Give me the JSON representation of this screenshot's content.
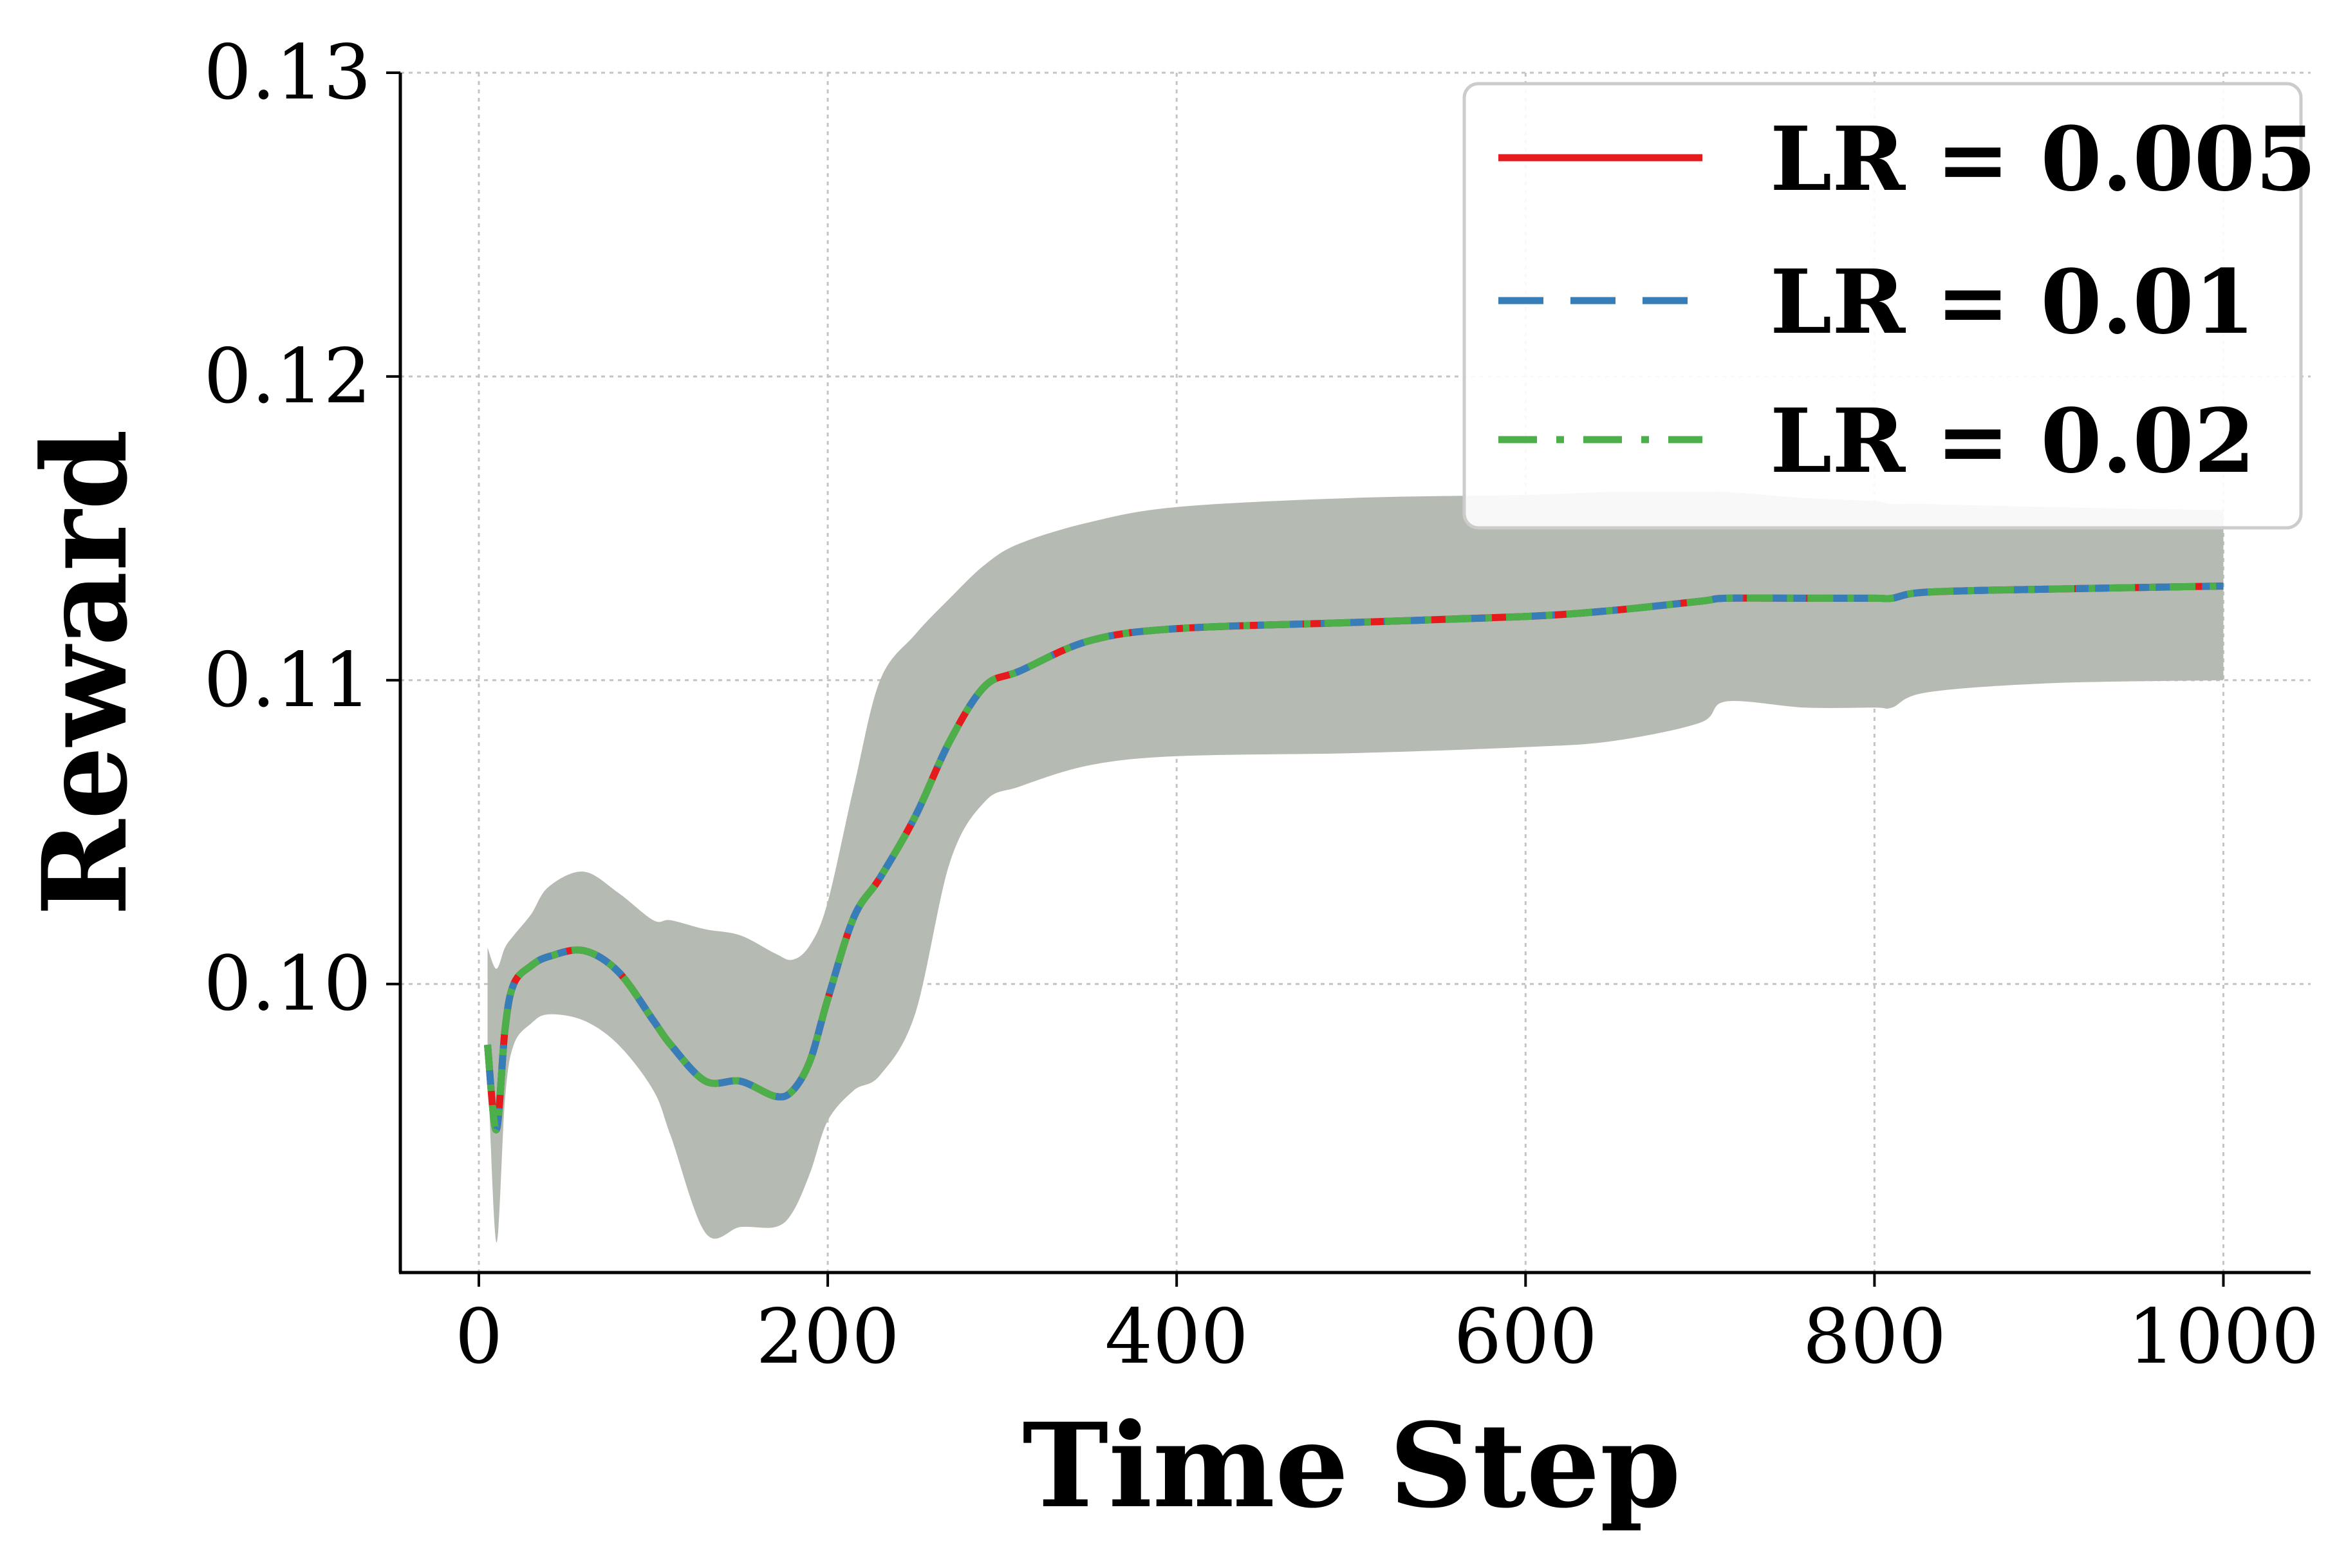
{
  "chart_data": {
    "type": "line",
    "xlabel": "Time Step",
    "ylabel": "Reward",
    "xlim": [
      -45,
      1050
    ],
    "ylim": [
      0.0905,
      0.13
    ],
    "xticks": [
      0,
      200,
      400,
      600,
      800,
      1000
    ],
    "xtick_labels": [
      "0",
      "200",
      "400",
      "600",
      "800",
      "1000"
    ],
    "yticks": [
      0.1,
      0.11,
      0.12,
      0.13
    ],
    "ytick_labels": [
      "0.10",
      "0.11",
      "0.12",
      "0.13"
    ],
    "grid": true,
    "legend_position": "top-right",
    "x": [
      5,
      10,
      15,
      20,
      30,
      40,
      60,
      80,
      100,
      110,
      130,
      150,
      170,
      180,
      190,
      200,
      215,
      230,
      250,
      270,
      290,
      310,
      350,
      400,
      500,
      600,
      650,
      700,
      715,
      760,
      800,
      810,
      830,
      900,
      1000
    ],
    "mean": [
      0.098,
      0.0952,
      0.0985,
      0.1,
      0.1006,
      0.1009,
      0.1011,
      0.1004,
      0.0988,
      0.098,
      0.0968,
      0.0968,
      0.0963,
      0.0965,
      0.0975,
      0.0995,
      0.1022,
      0.1035,
      0.1055,
      0.108,
      0.1098,
      0.1103,
      0.1113,
      0.1117,
      0.1119,
      0.1121,
      0.1123,
      0.1126,
      0.1127,
      0.1127,
      0.1127,
      0.1127,
      0.1129,
      0.113,
      0.1131
    ],
    "band": {
      "upper": [
        0.1012,
        0.1005,
        0.1012,
        0.1016,
        0.1023,
        0.1032,
        0.1037,
        0.103,
        0.1021,
        0.1021,
        0.1018,
        0.1016,
        0.101,
        0.1008,
        0.1013,
        0.1027,
        0.1065,
        0.11,
        0.1115,
        0.1127,
        0.1138,
        0.1145,
        0.1152,
        0.1157,
        0.116,
        0.1161,
        0.1162,
        0.1162,
        0.1162,
        0.116,
        0.1159,
        0.1158,
        0.1158,
        0.1157,
        0.1156
      ],
      "lower": [
        0.0975,
        0.0915,
        0.0962,
        0.098,
        0.0987,
        0.099,
        0.0988,
        0.098,
        0.0965,
        0.095,
        0.0918,
        0.092,
        0.092,
        0.0925,
        0.0938,
        0.0955,
        0.0965,
        0.097,
        0.099,
        0.104,
        0.106,
        0.1065,
        0.1072,
        0.1075,
        0.1076,
        0.1078,
        0.108,
        0.1086,
        0.1093,
        0.1091,
        0.1091,
        0.1091,
        0.1096,
        0.1099,
        0.11
      ],
      "color": "#b5bbb2"
    },
    "series": [
      {
        "name": "LR = 0.005",
        "color": "#e41a1c",
        "style": "solid"
      },
      {
        "name": "LR = 0.01",
        "color": "#377eb8",
        "style": "dashed"
      },
      {
        "name": "LR = 0.02",
        "color": "#4daf4a",
        "style": "dashdot"
      }
    ]
  }
}
